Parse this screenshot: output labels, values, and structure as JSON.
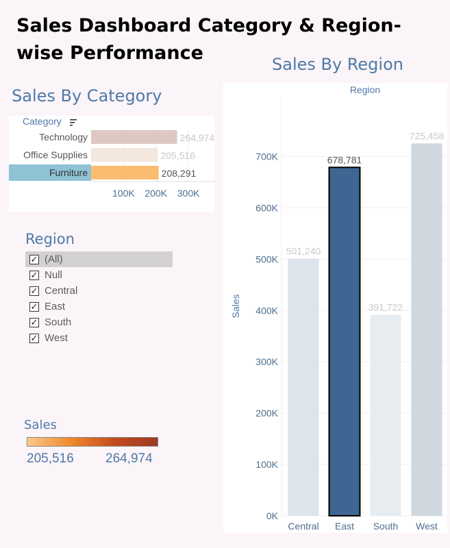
{
  "dashboard": {
    "title": "Sales Dashboard Category & Region-wise Performance"
  },
  "category_sheet": {
    "title": "Sales By Category",
    "header": "Category",
    "sort_icon": "sort-descending-icon"
  },
  "region_sheet": {
    "title": "Sales By Region",
    "header": "Region",
    "y_axis_label": "Sales"
  },
  "region_filter": {
    "title": "Region",
    "items": [
      {
        "label": "(All)",
        "checked": true
      },
      {
        "label": "Null",
        "checked": true
      },
      {
        "label": "Central",
        "checked": true
      },
      {
        "label": "East",
        "checked": true
      },
      {
        "label": "South",
        "checked": true
      },
      {
        "label": "West",
        "checked": true
      }
    ]
  },
  "sales_legend": {
    "title": "Sales",
    "min_label": "205,516",
    "max_label": "264,974",
    "colors": [
      "#fbc98c",
      "#f08a2c",
      "#c54a1c",
      "#9c3a22"
    ]
  },
  "chart_data": [
    {
      "type": "bar",
      "orientation": "horizontal",
      "title": "Sales By Category",
      "categories": [
        "Technology",
        "Office Supplies",
        "Furniture"
      ],
      "values": [
        264974,
        205516,
        208291
      ],
      "data_labels": [
        "264,974",
        "205,516",
        "208,291"
      ],
      "x_ticks": [
        "100K",
        "200K",
        "300K"
      ],
      "xlim": [
        0,
        380000
      ],
      "highlighted": "Furniture",
      "colors": {
        "Technology": "#ddc8c3",
        "Office Supplies": "#f3e7de",
        "Furniture": "#fbbb71",
        "highlight_row": "#8ec2d4"
      },
      "grid": true
    },
    {
      "type": "bar",
      "title": "Sales By Region",
      "categories": [
        "Central",
        "East",
        "South",
        "West"
      ],
      "values": [
        501240,
        678781,
        391722,
        725458
      ],
      "data_labels": [
        "501,240",
        "678,781",
        "391,722",
        "725,458"
      ],
      "y_ticks": [
        "0K",
        "100K",
        "200K",
        "300K",
        "400K",
        "500K",
        "600K",
        "700K"
      ],
      "ylim": [
        0,
        790000
      ],
      "ylabel": "Sales",
      "highlighted": "East",
      "colors": {
        "Central": "#dde4ec",
        "East": "#3e6693",
        "South": "#e6ecf0",
        "West": "#cfd7df"
      },
      "grid": true
    }
  ]
}
